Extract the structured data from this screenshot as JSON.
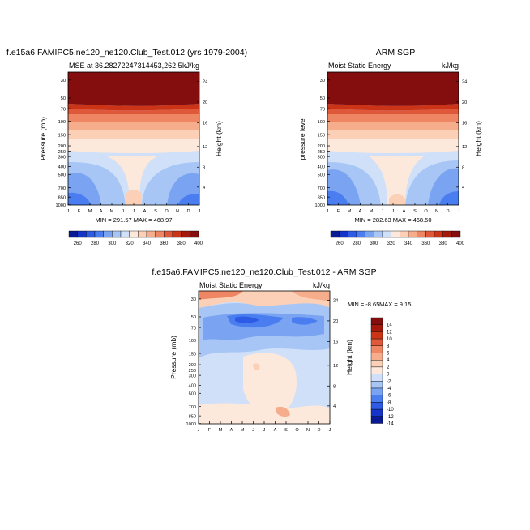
{
  "colors": {
    "mse_scale": [
      "#0a1a94",
      "#1535c8",
      "#2d5be6",
      "#4a7ef0",
      "#7aa4f2",
      "#a8c6f5",
      "#cfe0f8",
      "#fde8dc",
      "#fbd0b7",
      "#f5ad8c",
      "#ee8563",
      "#e0583a",
      "#cc3418",
      "#a5180c",
      "#840d0d"
    ],
    "diff_scale": [
      "#0a1a94",
      "#1535c8",
      "#2d5be6",
      "#4a7ef0",
      "#7aa4f2",
      "#a8c6f5",
      "#cfe0f8",
      "#fde8dc",
      "#fbd0b7",
      "#f5ad8c",
      "#ee8563",
      "#e0583a",
      "#cc3418",
      "#a5180c",
      "#840d0d"
    ]
  },
  "chart_data": [
    {
      "type": "heatmap",
      "title": "f.e15a6.FAMIPC5.ne120_ne120.Club_Test.012 (yrs 1979-2004)",
      "subtitle_left": "MSE at 36.28272247314453,262.5",
      "subtitle_right": "kJ/kg",
      "ylabel": "Pressure (mb)",
      "ylabel_right": "Height (km)",
      "x_ticks": [
        "J",
        "F",
        "M",
        "A",
        "M",
        "J",
        "J",
        "A",
        "S",
        "O",
        "N",
        "D",
        "J"
      ],
      "y_ticks": [
        "30",
        "50",
        "70",
        "100",
        "150",
        "200",
        "250",
        "300",
        "400",
        "500",
        "700",
        "850",
        "1000"
      ],
      "y_ticks_right": [
        "24",
        "20",
        "16",
        "12",
        "8",
        "4"
      ],
      "stats": "MIN = 291.57 MAX = 468.97",
      "colorbar_labels": [
        "260",
        "280",
        "300",
        "320",
        "340",
        "360",
        "380",
        "400"
      ]
    },
    {
      "type": "heatmap",
      "title": "ARM SGP",
      "subtitle_left": "Moist Static Energy",
      "subtitle_right": "kJ/kg",
      "ylabel": "pressure level",
      "ylabel_right": "Height (km)",
      "x_ticks": [
        "J",
        "F",
        "M",
        "A",
        "M",
        "J",
        "J",
        "A",
        "S",
        "O",
        "N",
        "D",
        "J"
      ],
      "y_ticks": [
        "30",
        "50",
        "70",
        "100",
        "150",
        "200",
        "250",
        "300",
        "400",
        "500",
        "700",
        "850",
        "1000"
      ],
      "y_ticks_right": [
        "24",
        "20",
        "16",
        "12",
        "8",
        "4"
      ],
      "stats": "MIN = 282.63 MAX = 468.50",
      "colorbar_labels": [
        "260",
        "280",
        "300",
        "320",
        "340",
        "360",
        "380",
        "400"
      ]
    },
    {
      "type": "heatmap",
      "title": "f.e15a6.FAMIPC5.ne120_ne120.Club_Test.012 - ARM SGP",
      "subtitle_left": "Moist Static Energy",
      "subtitle_right": "kJ/kg",
      "ylabel": "Pressure (mb)",
      "ylabel_right": "Height (km)",
      "x_ticks": [
        "J",
        "F",
        "M",
        "A",
        "M",
        "J",
        "J",
        "A",
        "S",
        "O",
        "N",
        "D",
        "J"
      ],
      "y_ticks": [
        "30",
        "50",
        "70",
        "100",
        "150",
        "200",
        "250",
        "300",
        "400",
        "500",
        "700",
        "850",
        "1000"
      ],
      "y_ticks_right": [
        "24",
        "20",
        "16",
        "12",
        "8",
        "4"
      ],
      "stats_min": "MIN =  -8.65",
      "stats_max": "MAX =   9.15",
      "colorbar_labels": [
        "14",
        "12",
        "10",
        "8",
        "6",
        "4",
        "2",
        "0",
        "-2",
        "-4",
        "-6",
        "-8",
        "-10",
        "-12",
        "-14"
      ]
    }
  ]
}
